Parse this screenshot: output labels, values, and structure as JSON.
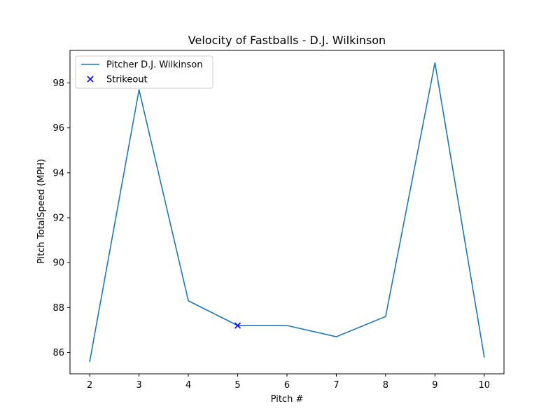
{
  "chart_data": {
    "type": "line",
    "title": "Velocity of Fastballs - D.J. Wilkinson",
    "xlabel": "Pitch #",
    "ylabel": "Pitch TotalSpeed (MPH)",
    "xlim": [
      1.6,
      10.4
    ],
    "ylim": [
      85.05,
      99.45
    ],
    "xticks": [
      2,
      3,
      4,
      5,
      6,
      7,
      8,
      9,
      10
    ],
    "yticks": [
      86,
      88,
      90,
      92,
      94,
      96,
      98
    ],
    "grid": false,
    "legend_position": "upper-left",
    "series": [
      {
        "name": "Pitcher D.J. Wilkinson",
        "kind": "line",
        "color": "#1f77b4",
        "x": [
          2,
          3,
          4,
          5,
          6,
          7,
          8,
          9,
          10
        ],
        "y": [
          85.6,
          97.7,
          88.3,
          87.2,
          87.2,
          86.7,
          87.6,
          98.9,
          85.8
        ]
      },
      {
        "name": "Strikeout",
        "kind": "scatter",
        "marker": "x",
        "color": "#0000ff",
        "x": [
          5
        ],
        "y": [
          87.2
        ]
      }
    ]
  }
}
